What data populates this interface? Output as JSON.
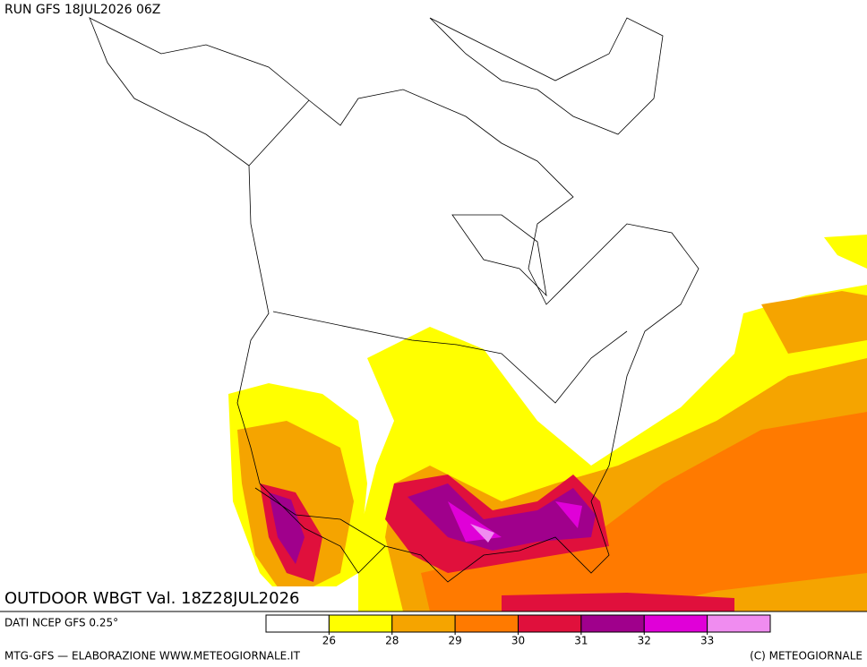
{
  "header": {
    "run": "RUN GFS 18JUL2026 06Z"
  },
  "map": {
    "label": "OUTDOOR WBGT Val. 18Z28JUL2026"
  },
  "legend": {
    "colors": [
      "#ffffff",
      "#ffff00",
      "#f5a400",
      "#ff7a00",
      "#e0103c",
      "#a0008c",
      "#e000d8",
      "#f08cf0"
    ],
    "ticks": [
      26,
      28,
      29,
      30,
      31,
      32,
      33
    ]
  },
  "footer": {
    "source": "DATI NCEP GFS 0.25°",
    "credit": "MTG-GFS — ELABORAZIONE WWW.METEOGIORNALE.IT",
    "copyright": "(C) METEOGIORNALE"
  }
}
